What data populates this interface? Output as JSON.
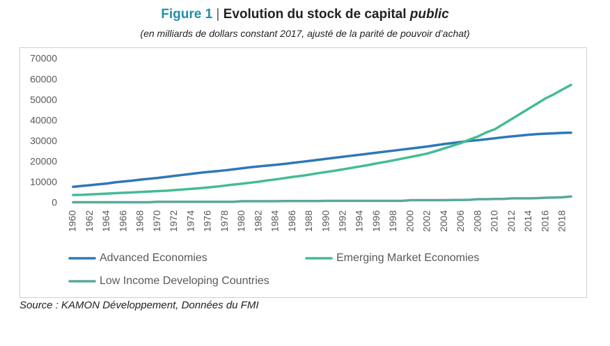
{
  "chart_data": {
    "type": "line",
    "title_label": "Figure 1",
    "title_separator": "|",
    "title": "Evolution du stock de capital",
    "title_emphasis": "public",
    "subtitle": "(en milliards de dollars constant 2017, ajusté de la parité de pouvoir d’achat)",
    "source": "Source : KAMON Développement, Données du FMI",
    "x": [
      1960,
      1961,
      1962,
      1963,
      1964,
      1965,
      1966,
      1967,
      1968,
      1969,
      1970,
      1971,
      1972,
      1973,
      1974,
      1975,
      1976,
      1977,
      1978,
      1979,
      1980,
      1981,
      1982,
      1983,
      1984,
      1985,
      1986,
      1987,
      1988,
      1989,
      1990,
      1991,
      1992,
      1993,
      1994,
      1995,
      1996,
      1997,
      1998,
      1999,
      2000,
      2001,
      2002,
      2003,
      2004,
      2005,
      2006,
      2007,
      2008,
      2009,
      2010,
      2011,
      2012,
      2013,
      2014,
      2015,
      2016,
      2017,
      2018,
      2019
    ],
    "xlim": [
      1960,
      2019
    ],
    "xticks": [
      1960,
      1962,
      1964,
      1966,
      1968,
      1970,
      1972,
      1974,
      1976,
      1978,
      1980,
      1982,
      1984,
      1986,
      1988,
      1990,
      1992,
      1994,
      1996,
      1998,
      2000,
      2002,
      2004,
      2006,
      2008,
      2010,
      2012,
      2014,
      2016,
      2018
    ],
    "ylim": [
      0,
      70000
    ],
    "yticks": [
      0,
      10000,
      20000,
      30000,
      40000,
      50000,
      60000,
      70000
    ],
    "grid": false,
    "series": [
      {
        "name": "Advanced Economies",
        "color": "#2e78b7",
        "values": [
          8000,
          8400,
          8800,
          9200,
          9600,
          10200,
          10600,
          11000,
          11500,
          11900,
          12300,
          12800,
          13300,
          13800,
          14300,
          14800,
          15200,
          15600,
          16000,
          16500,
          17000,
          17500,
          17900,
          18300,
          18700,
          19100,
          19600,
          20100,
          20600,
          21100,
          21600,
          22100,
          22600,
          23100,
          23600,
          24100,
          24600,
          25100,
          25600,
          26100,
          26600,
          27100,
          27600,
          28200,
          28800,
          29300,
          29800,
          30300,
          30700,
          31100,
          31600,
          32100,
          32500,
          32900,
          33300,
          33600,
          33800,
          34000,
          34200,
          34300
        ]
      },
      {
        "name": "Emerging Market Economies",
        "color": "#44bb96",
        "values": [
          4000,
          4100,
          4300,
          4500,
          4700,
          4900,
          5100,
          5300,
          5500,
          5700,
          5900,
          6100,
          6400,
          6700,
          7000,
          7300,
          7700,
          8100,
          8600,
          9100,
          9500,
          10000,
          10500,
          11100,
          11600,
          12200,
          12800,
          13300,
          13900,
          14600,
          15200,
          15800,
          16500,
          17200,
          17900,
          18600,
          19400,
          20100,
          20900,
          21700,
          22500,
          23300,
          24200,
          25400,
          26700,
          28000,
          29300,
          31000,
          32500,
          34500,
          36000,
          38500,
          41000,
          43500,
          46000,
          48500,
          51000,
          53000,
          55300,
          57500
        ]
      },
      {
        "name": "Low Income Developing Countries",
        "color": "#5ba79c",
        "values": [
          500,
          500,
          500,
          500,
          500,
          500,
          500,
          500,
          500,
          500,
          700,
          700,
          700,
          700,
          700,
          700,
          700,
          700,
          700,
          700,
          1000,
          1000,
          1000,
          1000,
          1000,
          1100,
          1100,
          1100,
          1100,
          1100,
          1200,
          1200,
          1200,
          1200,
          1200,
          1200,
          1200,
          1200,
          1200,
          1200,
          1500,
          1500,
          1500,
          1500,
          1500,
          1600,
          1600,
          1700,
          2000,
          2000,
          2100,
          2100,
          2400,
          2400,
          2400,
          2500,
          2700,
          2800,
          2900,
          3300
        ]
      }
    ]
  }
}
